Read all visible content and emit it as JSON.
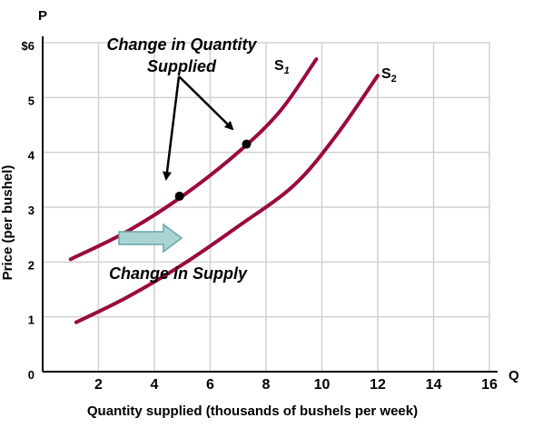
{
  "chart_data": {
    "type": "line",
    "x_axis": {
      "symbol": "Q",
      "label": "Quantity supplied (thousands of bushels per week)",
      "ticks": [
        "2",
        "4",
        "6",
        "8",
        "10",
        "12",
        "14",
        "16"
      ],
      "range": [
        0,
        16
      ]
    },
    "y_axis": {
      "symbol": "P",
      "label": "Price (per bushel)",
      "ticks": [
        "0",
        "1",
        "2",
        "3",
        "4",
        "5",
        "$6"
      ],
      "range": [
        0,
        6
      ]
    },
    "grid": true,
    "series": [
      {
        "name": "S1",
        "color": "#9b0a3f",
        "points": [
          [
            1,
            2.05
          ],
          [
            3,
            2.55
          ],
          [
            5,
            3.2
          ],
          [
            7,
            4.0
          ],
          [
            8.5,
            4.75
          ],
          [
            9.8,
            5.7
          ]
        ]
      },
      {
        "name": "S2",
        "color": "#9b0a3f",
        "points": [
          [
            1.2,
            0.9
          ],
          [
            3,
            1.35
          ],
          [
            5,
            1.95
          ],
          [
            7,
            2.65
          ],
          [
            9,
            3.4
          ],
          [
            10.5,
            4.3
          ],
          [
            12,
            5.4
          ]
        ]
      }
    ],
    "series_labels": [
      {
        "main": "S",
        "sub": "1"
      },
      {
        "main": "S",
        "sub": "2"
      }
    ],
    "points": [
      {
        "x": 4.9,
        "y": 3.2
      },
      {
        "x": 7.3,
        "y": 4.15
      }
    ],
    "annotations": {
      "quantity_change_line1": "Change in Quantity",
      "quantity_change_line2": "Supplied",
      "supply_change": "Change in Supply"
    },
    "colors": {
      "curve": "#9b0a3f",
      "arrow_fill": "#a9d4d6",
      "arrow_stroke": "#6aa3a8",
      "grid": "#d0d0d0"
    }
  }
}
